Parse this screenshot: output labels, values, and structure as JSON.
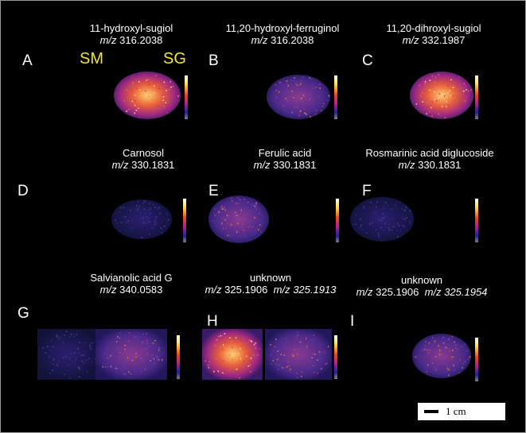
{
  "panels": [
    {
      "letter": "A",
      "name": "11-hydroxyl-sugiol",
      "mz": [
        {
          "prefix": "m/z",
          "value": "316.2038"
        }
      ]
    },
    {
      "letter": "B",
      "name": "11,20-hydroxyl-ferruginol",
      "mz": [
        {
          "prefix": "m/z",
          "value": "316.2038"
        }
      ]
    },
    {
      "letter": "C",
      "name": "11,20-dihroxyl-sugiol",
      "mz": [
        {
          "prefix": "m/z",
          "value": "332.1987"
        }
      ]
    },
    {
      "letter": "D",
      "name": "Carnosol",
      "mz": [
        {
          "prefix": "m/z",
          "value": "330.1831"
        }
      ]
    },
    {
      "letter": "E",
      "name": "Ferulic acid",
      "mz": [
        {
          "prefix": "m/z",
          "value": "330.1831"
        }
      ]
    },
    {
      "letter": "F",
      "name": "Rosmarinic acid diglucoside",
      "mz": [
        {
          "prefix": "m/z",
          "value": "330.1831"
        }
      ]
    },
    {
      "letter": "G",
      "name": "Salvianolic acid G",
      "mz": [
        {
          "prefix": "m/z",
          "value": "340.0583"
        }
      ]
    },
    {
      "letter": "H",
      "name": "unknown",
      "mz": [
        {
          "prefix": "m/z",
          "value": "325.1906"
        },
        {
          "prefix": "m/z",
          "value": "325.1913"
        }
      ]
    },
    {
      "letter": "I",
      "name": "unknown",
      "mz": [
        {
          "prefix": "m/z",
          "value": "325.1906"
        },
        {
          "prefix": "m/z",
          "value": "325.1954"
        }
      ]
    }
  ],
  "labels": {
    "sm": "SM",
    "sg": "SG"
  },
  "scale_bar": "1 cm"
}
